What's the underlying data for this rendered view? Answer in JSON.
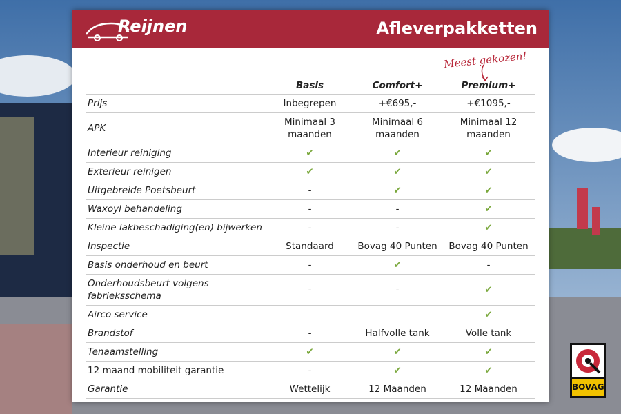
{
  "header": {
    "logo": "Reijnen",
    "title": "Afleverpakketten"
  },
  "annotation": "Meest gekozen!",
  "table": {
    "columns": [
      "Basis",
      "Comfort+",
      "Premium+"
    ],
    "rows": [
      [
        "Prijs",
        "Inbegrepen",
        "+€695,-",
        "+€1095,-"
      ],
      [
        "APK",
        "Minimaal 3 maanden",
        "Minimaal 6 maanden",
        "Minimaal 12 maanden"
      ],
      [
        "Interieur reiniging",
        "✔",
        "✔",
        "✔"
      ],
      [
        "Exterieur reinigen",
        "✔",
        "✔",
        "✔"
      ],
      [
        "Uitgebreide Poetsbeurt",
        "-",
        "✔",
        "✔"
      ],
      [
        "Waxoyl behandeling",
        "-",
        "-",
        "✔"
      ],
      [
        "Kleine lakbeschadiging(en) bijwerken",
        "-",
        "-",
        "✔"
      ],
      [
        "Inspectie",
        "Standaard",
        "Bovag 40 Punten",
        "Bovag 40 Punten"
      ],
      [
        "Basis onderhoud en beurt",
        "-",
        "✔",
        "-"
      ],
      [
        "Onderhoudsbeurt volgens fabrieksschema",
        "-",
        "-",
        "✔"
      ],
      [
        "Airco service",
        null,
        null,
        "✔"
      ],
      [
        "Brandstof",
        "-",
        "Halfvolle tank",
        "Volle tank"
      ],
      [
        "Tenaamstelling",
        "✔",
        "✔",
        "✔"
      ],
      [
        "12 maand mobiliteit garantie",
        "-",
        "✔",
        "✔"
      ],
      [
        "Garantie",
        "Wettelijk",
        "12 Maanden",
        "12 Maanden"
      ]
    ]
  },
  "badge": "BOVAG"
}
